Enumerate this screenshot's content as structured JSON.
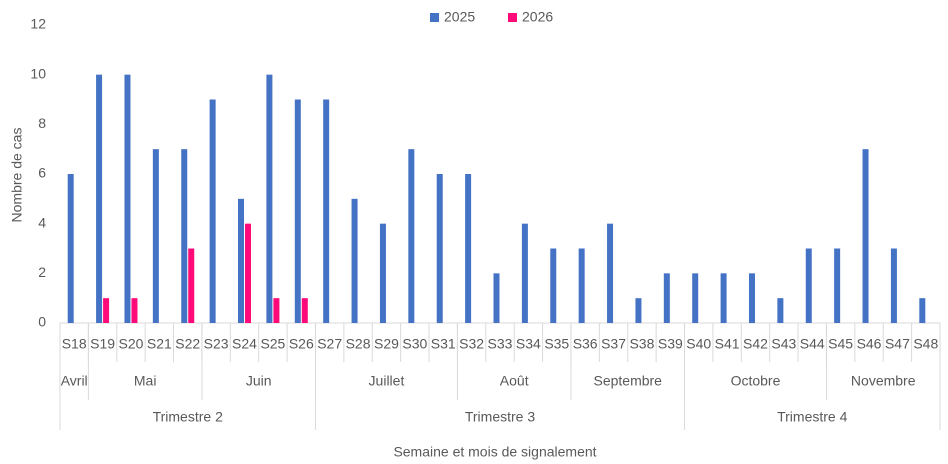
{
  "chart_data": {
    "type": "bar",
    "x_label": "Semaine et mois de signalement",
    "y_label": "Nombre de cas",
    "categories": [
      "S18",
      "S19",
      "S20",
      "S21",
      "S22",
      "S23",
      "S24",
      "S25",
      "S26",
      "S27",
      "S28",
      "S29",
      "S30",
      "S31",
      "S32",
      "S33",
      "S34",
      "S35",
      "S36",
      "S37",
      "S38",
      "S39",
      "S40",
      "S41",
      "S42",
      "S43",
      "S44",
      "S45",
      "S46",
      "S47",
      "S48"
    ],
    "series": [
      {
        "name": "2025",
        "color": "#4472c4",
        "values": [
          6,
          10,
          10,
          7,
          7,
          9,
          5,
          10,
          9,
          9,
          5,
          4,
          7,
          6,
          6,
          2,
          4,
          3,
          3,
          4,
          1,
          2,
          2,
          2,
          2,
          1,
          3,
          3,
          7,
          3,
          1
        ]
      },
      {
        "name": "2026",
        "color": "#ff0a78",
        "values": [
          null,
          1,
          1,
          null,
          3,
          null,
          4,
          1,
          1,
          null,
          null,
          null,
          null,
          null,
          null,
          null,
          null,
          null,
          null,
          null,
          null,
          null,
          null,
          null,
          null,
          null,
          null,
          null,
          null,
          null,
          null
        ]
      }
    ],
    "months": [
      {
        "label": "Avril",
        "span": 1
      },
      {
        "label": "Mai",
        "span": 4
      },
      {
        "label": "Juin",
        "span": 4
      },
      {
        "label": "Juillet",
        "span": 5
      },
      {
        "label": "Août",
        "span": 4
      },
      {
        "label": "Septembre",
        "span": 4
      },
      {
        "label": "Octobre",
        "span": 5
      },
      {
        "label": "Novembre",
        "span": 4
      }
    ],
    "quarters": [
      {
        "label": "Trimestre 2",
        "span": 9
      },
      {
        "label": "Trimestre 3",
        "span": 13
      },
      {
        "label": "Trimestre 4",
        "span": 9
      }
    ],
    "ylim": [
      0,
      12
    ],
    "yticks": [
      0,
      2,
      4,
      6,
      8,
      10,
      12
    ],
    "grid": false,
    "legend": "top"
  }
}
